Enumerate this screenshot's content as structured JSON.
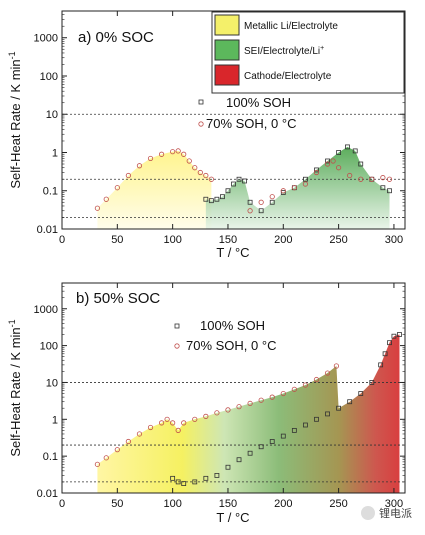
{
  "chart_data": [
    {
      "type": "scatter",
      "panel_title": "a) 0% SOC",
      "xlabel": "T / °C",
      "ylabel": "Self-Heat Rate / K min",
      "ylabel_sup": "-1",
      "xlim": [
        0,
        310
      ],
      "ylim": [
        0.01,
        5000
      ],
      "yscale": "log",
      "xticks": [
        0,
        50,
        100,
        150,
        200,
        250,
        300
      ],
      "yticks": [
        0.01,
        0.1,
        1,
        10,
        100,
        1000
      ],
      "ytick_labels": [
        "0.01",
        "0.1",
        "1",
        "10",
        "100",
        "1000"
      ],
      "dotted_lines": [
        10,
        0.2,
        0.02
      ],
      "box_legend": [
        {
          "label": "Metallic Li/Electrolyte",
          "color": "#f4f06a"
        },
        {
          "label": "SEI/Electrolyte/Li",
          "sup": "+",
          "color": "#5cb85c"
        },
        {
          "label": "Cathode/Electrolyte",
          "color": "#d9262b"
        }
      ],
      "series": [
        {
          "name": "100% SOH",
          "marker": "square",
          "points": [
            [
              130,
              0.06
            ],
            [
              135,
              0.055
            ],
            [
              140,
              0.06
            ],
            [
              145,
              0.07
            ],
            [
              150,
              0.1
            ],
            [
              155,
              0.15
            ],
            [
              160,
              0.2
            ],
            [
              165,
              0.18
            ],
            [
              170,
              0.05
            ],
            [
              180,
              0.03
            ],
            [
              190,
              0.05
            ],
            [
              200,
              0.09
            ],
            [
              210,
              0.12
            ],
            [
              220,
              0.2
            ],
            [
              230,
              0.35
            ],
            [
              240,
              0.6
            ],
            [
              250,
              1.0
            ],
            [
              258,
              1.4
            ],
            [
              265,
              1.1
            ],
            [
              270,
              0.5
            ],
            [
              280,
              0.2
            ],
            [
              290,
              0.12
            ],
            [
              296,
              0.1
            ]
          ]
        },
        {
          "name": "70% SOH, 0 °C",
          "marker": "circle",
          "points": [
            [
              32,
              0.035
            ],
            [
              40,
              0.06
            ],
            [
              50,
              0.12
            ],
            [
              60,
              0.25
            ],
            [
              70,
              0.45
            ],
            [
              80,
              0.7
            ],
            [
              90,
              0.9
            ],
            [
              100,
              1.05
            ],
            [
              105,
              1.1
            ],
            [
              110,
              0.9
            ],
            [
              115,
              0.6
            ],
            [
              120,
              0.4
            ],
            [
              125,
              0.3
            ],
            [
              130,
              0.25
            ],
            [
              135,
              0.2
            ],
            [
              170,
              0.03
            ],
            [
              180,
              0.05
            ],
            [
              190,
              0.07
            ],
            [
              200,
              0.1
            ],
            [
              210,
              0.12
            ],
            [
              220,
              0.15
            ],
            [
              230,
              0.3
            ],
            [
              240,
              0.5
            ],
            [
              245,
              0.6
            ],
            [
              250,
              0.4
            ],
            [
              260,
              0.25
            ],
            [
              270,
              0.2
            ],
            [
              280,
              0.2
            ],
            [
              290,
              0.22
            ],
            [
              296,
              0.2
            ]
          ]
        }
      ]
    },
    {
      "type": "scatter",
      "panel_title": "b) 50% SOC",
      "xlabel": "T / °C",
      "ylabel": "Self-Heat Rate / K min",
      "ylabel_sup": "-1",
      "xlim": [
        0,
        310
      ],
      "ylim": [
        0.01,
        5000
      ],
      "yscale": "log",
      "xticks": [
        0,
        50,
        100,
        150,
        200,
        250,
        300
      ],
      "yticks": [
        0.01,
        0.1,
        1,
        10,
        100,
        1000
      ],
      "ytick_labels": [
        "0.01",
        "0.1",
        "1",
        "10",
        "100",
        "1000"
      ],
      "dotted_lines": [
        10,
        0.2,
        0.02
      ],
      "series": [
        {
          "name": "100% SOH",
          "marker": "square",
          "points": [
            [
              100,
              0.025
            ],
            [
              105,
              0.02
            ],
            [
              110,
              0.018
            ],
            [
              120,
              0.02
            ],
            [
              130,
              0.025
            ],
            [
              140,
              0.03
            ],
            [
              150,
              0.05
            ],
            [
              160,
              0.08
            ],
            [
              170,
              0.12
            ],
            [
              180,
              0.18
            ],
            [
              190,
              0.25
            ],
            [
              200,
              0.35
            ],
            [
              210,
              0.5
            ],
            [
              220,
              0.7
            ],
            [
              230,
              1.0
            ],
            [
              240,
              1.4
            ],
            [
              250,
              2.0
            ],
            [
              260,
              3.0
            ],
            [
              270,
              5.0
            ],
            [
              280,
              10
            ],
            [
              288,
              30
            ],
            [
              292,
              60
            ],
            [
              296,
              120
            ],
            [
              300,
              180
            ],
            [
              305,
              200
            ]
          ]
        },
        {
          "name": "70% SOH, 0 °C",
          "marker": "circle",
          "points": [
            [
              32,
              0.06
            ],
            [
              40,
              0.09
            ],
            [
              50,
              0.15
            ],
            [
              60,
              0.25
            ],
            [
              70,
              0.4
            ],
            [
              80,
              0.6
            ],
            [
              90,
              0.8
            ],
            [
              95,
              1.0
            ],
            [
              100,
              0.8
            ],
            [
              105,
              0.5
            ],
            [
              110,
              0.8
            ],
            [
              120,
              1.0
            ],
            [
              130,
              1.2
            ],
            [
              140,
              1.5
            ],
            [
              150,
              1.8
            ],
            [
              160,
              2.2
            ],
            [
              170,
              2.7
            ],
            [
              180,
              3.3
            ],
            [
              190,
              4.0
            ],
            [
              200,
              5.0
            ],
            [
              210,
              6.5
            ],
            [
              220,
              8.5
            ],
            [
              230,
              12
            ],
            [
              240,
              18
            ],
            [
              248,
              28
            ]
          ]
        }
      ]
    }
  ],
  "watermark": "锂电派"
}
